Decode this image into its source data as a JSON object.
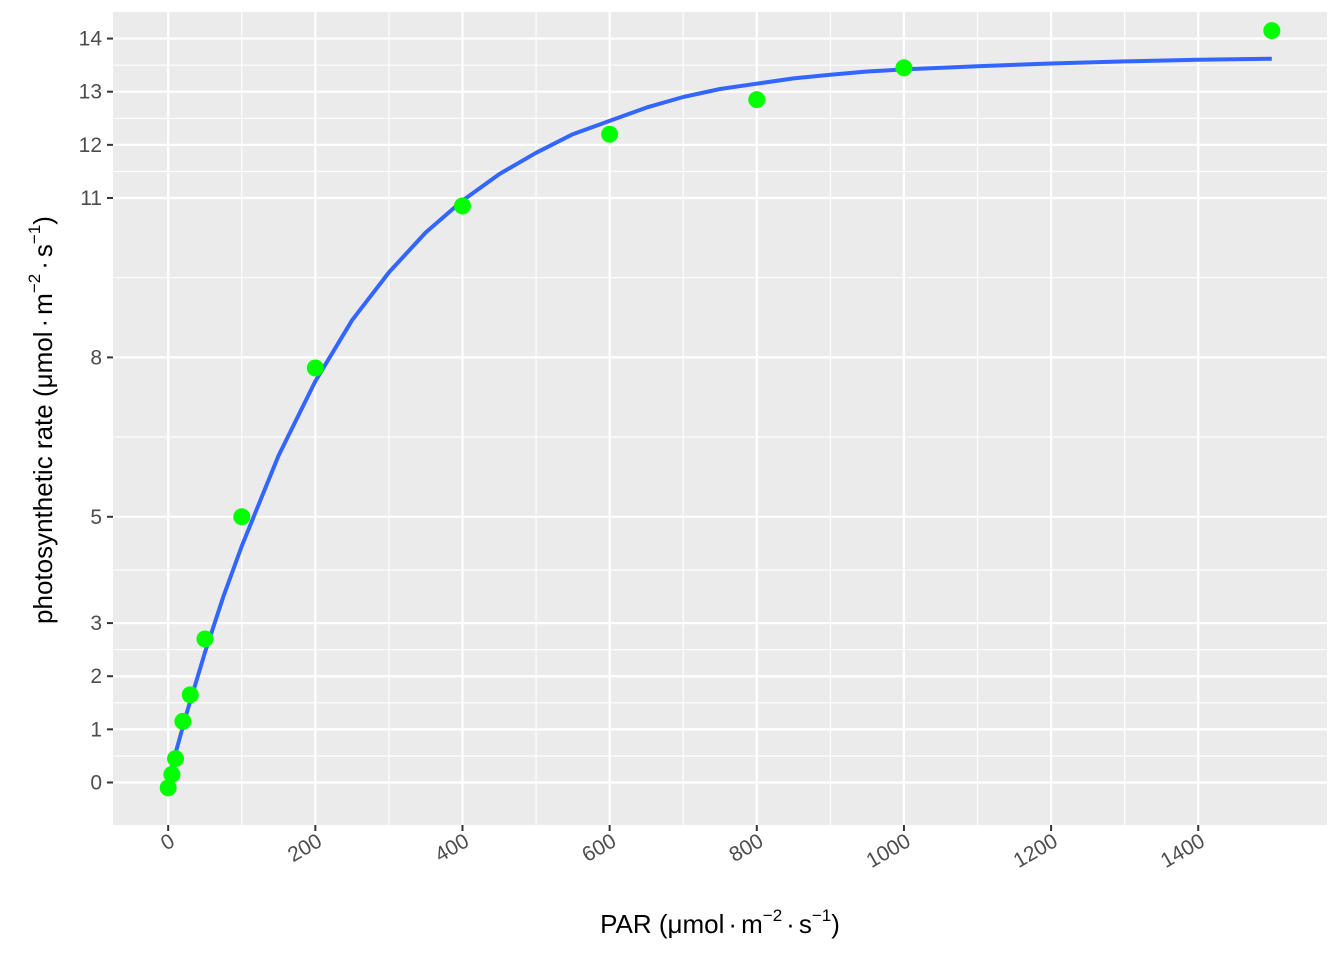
{
  "chart_data": {
    "type": "scatter",
    "x_axis": {
      "ticks": [
        0,
        200,
        400,
        600,
        800,
        1000,
        1200,
        1400
      ],
      "tick_labels": [
        "0",
        "200",
        "400",
        "600",
        "800",
        "1000",
        "1200",
        "1400"
      ],
      "range": [
        -75,
        1575
      ],
      "label": {
        "prefix": "PAR (",
        "unit_mu": "μ",
        "unit_mol": "mol",
        "dot": "·",
        "m": "m",
        "m_exp": "−2",
        "s": "s",
        "s_exp": "−1",
        "suffix": ")"
      }
    },
    "y_axis": {
      "ticks": [
        0,
        1,
        2,
        3,
        5,
        8,
        11,
        12,
        13,
        14
      ],
      "tick_labels": [
        "0",
        "1",
        "2",
        "3",
        "5",
        "8",
        "11",
        "12",
        "13",
        "14"
      ],
      "range": [
        -0.8,
        14.5
      ],
      "label": {
        "prefix": "photosynthetic rate (",
        "unit_mu": "μ",
        "unit_mol": "mol",
        "dot": "·",
        "m": "m",
        "m_exp": "−2",
        "s": "s",
        "s_exp": "−1",
        "suffix": ")"
      }
    },
    "grid": true,
    "points": {
      "color": "#00ff00",
      "x": [
        0,
        5,
        10,
        20,
        30,
        50,
        100,
        200,
        400,
        600,
        800,
        1000,
        1500
      ],
      "y": [
        -0.1,
        0.15,
        0.45,
        1.15,
        1.65,
        2.7,
        5.0,
        7.8,
        10.85,
        12.2,
        12.85,
        13.45,
        14.15
      ]
    },
    "fit_curve": {
      "color": "#3366ff",
      "x": [
        0,
        10,
        25,
        50,
        75,
        100,
        150,
        200,
        250,
        300,
        350,
        400,
        450,
        500,
        550,
        600,
        650,
        700,
        750,
        800,
        850,
        900,
        950,
        1000,
        1100,
        1200,
        1300,
        1400,
        1500
      ],
      "y": [
        0.05,
        0.55,
        1.3,
        2.45,
        3.5,
        4.45,
        6.15,
        7.55,
        8.7,
        9.6,
        10.35,
        10.95,
        11.45,
        11.85,
        12.2,
        12.45,
        12.7,
        12.9,
        13.05,
        13.15,
        13.25,
        13.32,
        13.38,
        13.42,
        13.48,
        13.53,
        13.57,
        13.6,
        13.62
      ]
    }
  }
}
